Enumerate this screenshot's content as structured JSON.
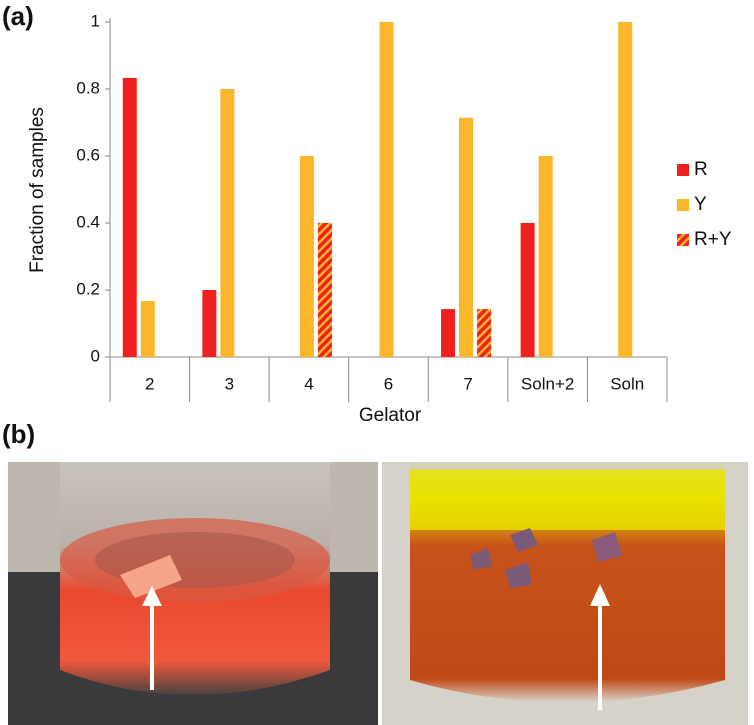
{
  "chart_data": {
    "type": "bar",
    "panel_labels": [
      "(a)",
      "(b)"
    ],
    "xlabel": "Gelator",
    "ylabel": "Fraction of samples",
    "categories": [
      "2",
      "3",
      "4",
      "6",
      "7",
      "Soln+2",
      "Soln"
    ],
    "series": [
      {
        "name": "R",
        "color": "#f0201e",
        "values": [
          0.833,
          0.2,
          0,
          0,
          0.143,
          0.4,
          0
        ]
      },
      {
        "name": "Y",
        "color": "#fbb62a",
        "values": [
          0.167,
          0.8,
          0.6,
          1,
          0.714,
          0.6,
          1
        ]
      },
      {
        "name": "R+Y",
        "color": "#f0201e",
        "hatch_color": "#fbb62a",
        "values": [
          0,
          0,
          0.4,
          0,
          0.143,
          0,
          0
        ]
      }
    ],
    "ylim": [
      0,
      1
    ],
    "yticks": [
      0,
      0.2,
      0.4,
      0.6,
      0.8,
      1
    ],
    "legend": "right"
  }
}
